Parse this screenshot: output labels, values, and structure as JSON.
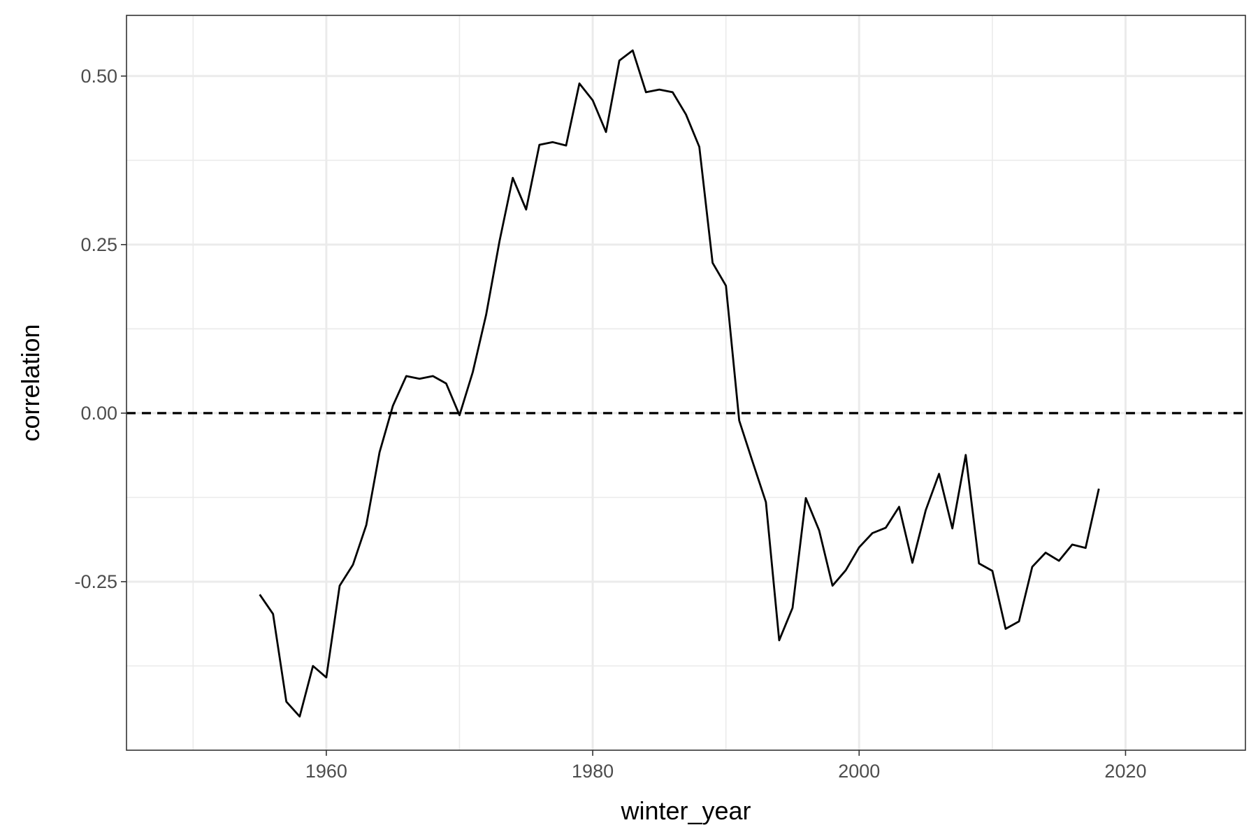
{
  "chart_data": {
    "type": "line",
    "title": "",
    "xlabel": "winter_year",
    "ylabel": "correlation",
    "xlim": [
      1945,
      2029
    ],
    "ylim": [
      -0.5,
      0.59
    ],
    "x_ticks": [
      1960,
      1980,
      2000,
      2020
    ],
    "x_tick_labels": [
      "1960",
      "1980",
      "2000",
      "2020"
    ],
    "x_minor_ticks": [
      1950,
      1970,
      1990,
      2010
    ],
    "y_ticks": [
      -0.25,
      0,
      0.25,
      0.5
    ],
    "y_tick_labels": [
      "-0.25",
      "0.00",
      "0.25",
      "0.50"
    ],
    "y_minor_ticks": [
      -0.375,
      -0.125,
      0.125,
      0.375
    ],
    "grid": true,
    "legend": "none",
    "reference_line": {
      "y": 0,
      "style": "dashed",
      "color": "#000000"
    },
    "series": [
      {
        "color": "#000000",
        "x": [
          1955,
          1956,
          1957,
          1958,
          1959,
          1960,
          1961,
          1962,
          1963,
          1964,
          1965,
          1966,
          1967,
          1968,
          1969,
          1970,
          1971,
          1972,
          1973,
          1974,
          1975,
          1976,
          1977,
          1978,
          1979,
          1980,
          1981,
          1982,
          1983,
          1984,
          1985,
          1986,
          1987,
          1988,
          1989,
          1990,
          1991,
          1992,
          1993,
          1994,
          1995,
          1996,
          1997,
          1998,
          1999,
          2000,
          2001,
          2002,
          2003,
          2004,
          2005,
          2006,
          2007,
          2008,
          2009,
          2010,
          2011,
          2012,
          2013,
          2014,
          2015,
          2016,
          2017,
          2018
        ],
        "y": [
          -0.269,
          -0.298,
          -0.428,
          -0.45,
          -0.375,
          -0.392,
          -0.256,
          -0.225,
          -0.166,
          -0.058,
          0.011,
          0.055,
          0.051,
          0.055,
          0.044,
          -0.003,
          0.061,
          0.146,
          0.255,
          0.349,
          0.302,
          0.398,
          0.402,
          0.397,
          0.489,
          0.464,
          0.417,
          0.523,
          0.538,
          0.476,
          0.48,
          0.476,
          0.443,
          0.395,
          0.223,
          0.189,
          -0.011,
          -0.072,
          -0.132,
          -0.337,
          -0.289,
          -0.126,
          -0.174,
          -0.256,
          -0.233,
          -0.199,
          -0.178,
          -0.17,
          -0.139,
          -0.222,
          -0.144,
          -0.09,
          -0.171,
          -0.062,
          -0.223,
          -0.234,
          -0.32,
          -0.309,
          -0.228,
          -0.207,
          -0.219,
          -0.195,
          -0.2,
          -0.112
        ]
      }
    ]
  }
}
